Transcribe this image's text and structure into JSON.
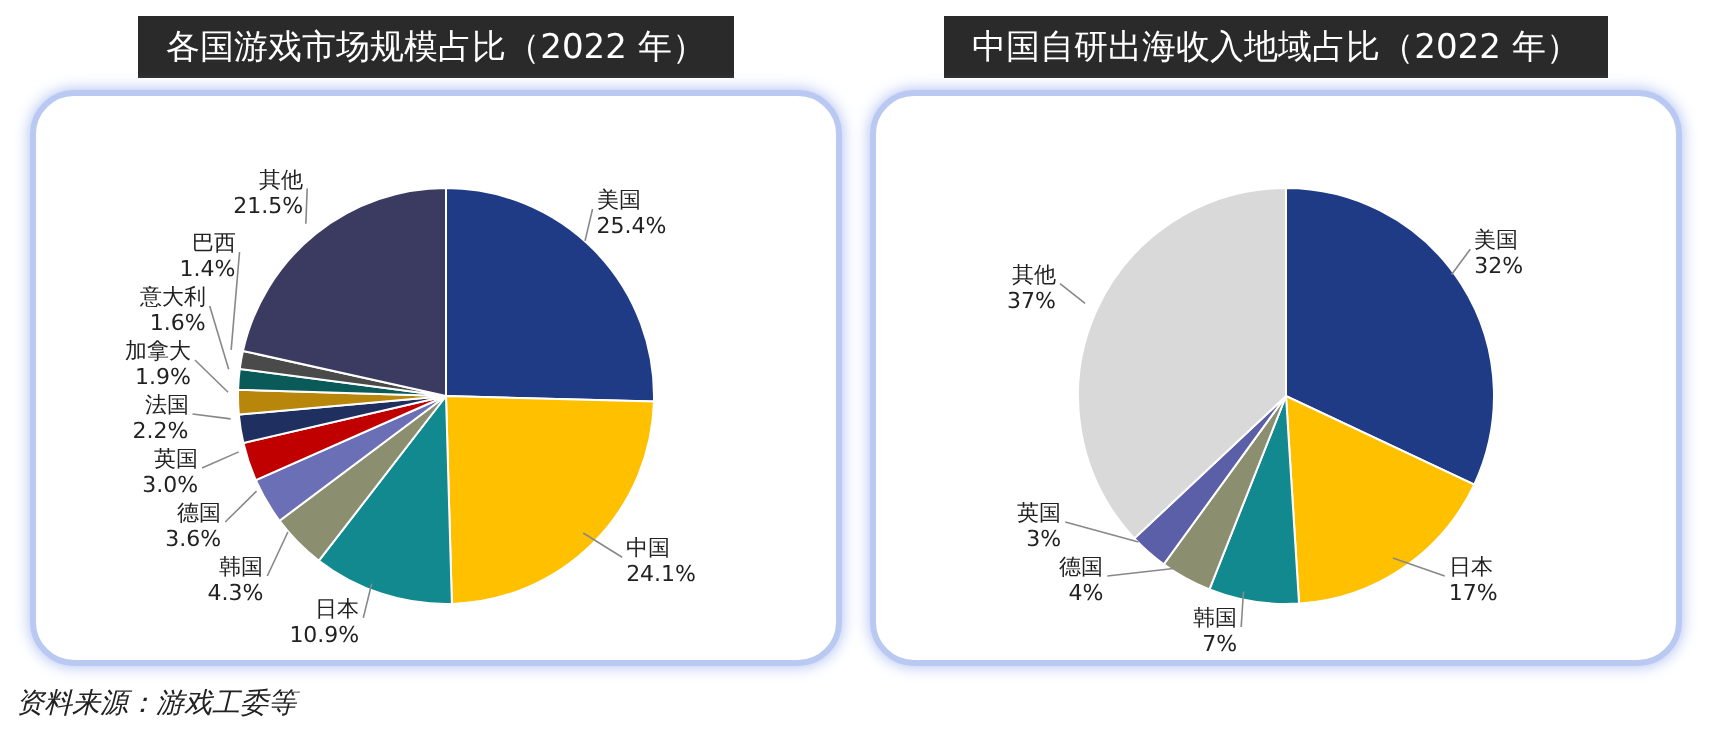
{
  "chart_data": [
    {
      "type": "pie",
      "title": "各国游戏市场规模占比（2022 年）",
      "categories": [
        "美国",
        "中国",
        "日本",
        "韩国",
        "德国",
        "英国",
        "法国",
        "加拿大",
        "意大利",
        "巴西",
        "其他"
      ],
      "values": [
        25.4,
        24.1,
        10.9,
        4.3,
        3.6,
        3.0,
        2.2,
        1.9,
        1.6,
        1.4,
        21.5
      ],
      "value_labels": [
        "25.4%",
        "24.1%",
        "10.9%",
        "4.3%",
        "3.6%",
        "3.0%",
        "2.2%",
        "1.9%",
        "1.6%",
        "1.4%",
        "21.5%"
      ],
      "colors": [
        "#1f3b86",
        "#ffc000",
        "#12898e",
        "#8c8f6f",
        "#6b6fb5",
        "#c00000",
        "#1f2f5f",
        "#b8860b",
        "#0b5a5a",
        "#4a4a4a",
        "#3b3a60"
      ],
      "annotations": [
        "资料来源：游戏工委等"
      ]
    },
    {
      "type": "pie",
      "title": "中国自研出海收入地域占比（2022 年）",
      "categories": [
        "美国",
        "日本",
        "韩国",
        "德国",
        "英国",
        "其他"
      ],
      "values": [
        32,
        17,
        7,
        4,
        3,
        37
      ],
      "value_labels": [
        "32%",
        "17%",
        "7%",
        "4%",
        "3%",
        "37%"
      ],
      "colors": [
        "#1f3b86",
        "#ffc000",
        "#12898e",
        "#8c8f6f",
        "#5b5fa8",
        "#d9d9d9"
      ]
    }
  ]
}
